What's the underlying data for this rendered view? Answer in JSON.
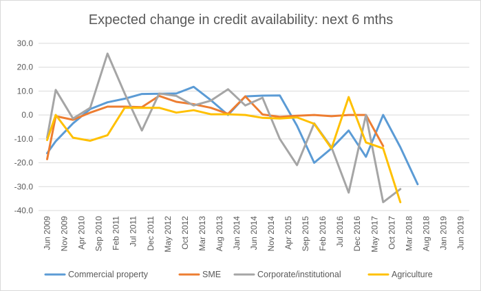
{
  "chart_data": {
    "type": "line",
    "title": "Expected change in credit availability: next 6 mths",
    "xlabel": "",
    "ylabel": "",
    "ylim": [
      -40,
      30
    ],
    "yticks": [
      "30.0",
      "20.0",
      "10.0",
      "0.0",
      "-10.0",
      "-20.0",
      "-30.0",
      "-40.0"
    ],
    "categories": [
      "Jun 2009",
      "Nov 2009",
      "Apr 2010",
      "Sep 2010",
      "Feb 2011",
      "Jul 2011",
      "Dec 2011",
      "May 2012",
      "Oct 2012",
      "Mar 2013",
      "Aug 2013",
      "Jan 2014",
      "Jun 2014",
      "Nov 2014",
      "Apr 2015",
      "Sep 2015",
      "Feb 2016",
      "Jul 2016",
      "Dec 2016",
      "May 2017",
      "Oct 2017",
      "Mar 2018",
      "Aug 2018",
      "Jan 2019",
      "Jun 2019"
    ],
    "legend_position": "bottom",
    "series": [
      {
        "name": "Commercial property",
        "color": "#5b9bd5",
        "x": [
          0,
          0.5,
          1.5,
          2.5,
          3.5,
          4.5,
          5.5,
          6.5,
          7.5,
          8.5,
          9.5,
          10.5,
          11.5,
          12.5,
          13.5,
          14.5,
          15.5,
          16.5,
          17.5,
          18.5,
          19.5,
          20.5,
          21.5,
          22.5,
          23.5
        ],
        "values": [
          -16,
          -11,
          -3.5,
          2.5,
          5.3,
          6.8,
          8.8,
          8.9,
          9,
          11.8,
          6.2,
          0,
          7.8,
          8.1,
          8.2,
          -4.5,
          -20,
          -14,
          -6.5,
          -17.5,
          0,
          -13.5,
          -29,
          null,
          null
        ]
      },
      {
        "name": "SME",
        "color": "#ed7d31",
        "x": [
          0,
          0.5,
          1.5,
          2.5,
          3.5,
          4.5,
          5.5,
          6.5,
          7.5,
          8.5,
          9.5,
          10.5,
          11.5,
          12.5,
          13.5,
          14.5,
          15.5,
          16.5,
          17.5,
          18.5,
          19.5,
          20.5,
          21.5,
          22.5,
          23.5
        ],
        "values": [
          -18.5,
          -0.5,
          -2,
          1,
          3.5,
          3.5,
          3.3,
          8,
          5.5,
          4.5,
          3,
          0.5,
          7.8,
          0.2,
          -0.8,
          -0.3,
          0,
          -0.5,
          0,
          0,
          -13,
          null,
          null,
          null,
          null
        ]
      },
      {
        "name": "Corporate/institutional",
        "color": "#a5a5a5",
        "x": [
          0,
          0.5,
          1.5,
          2.5,
          3.5,
          4.5,
          5.5,
          6.5,
          7.5,
          8.5,
          9.5,
          10.5,
          11.5,
          12.5,
          13.5,
          14.5,
          15.5,
          16.5,
          17.5,
          18.5,
          19.5,
          20.5,
          21.5,
          22.5,
          23.5
        ],
        "values": [
          -9.5,
          10.5,
          -1.5,
          3,
          25.7,
          9,
          -6.5,
          9,
          8,
          4,
          6,
          10.8,
          4,
          7.2,
          -10,
          -21,
          -3.5,
          -13.5,
          -32.5,
          0,
          -36.5,
          -31,
          null,
          null,
          null
        ]
      },
      {
        "name": "Agriculture",
        "color": "#ffc000",
        "x": [
          0,
          0.5,
          1.5,
          2.5,
          3.5,
          4.5,
          5.5,
          6.5,
          7.5,
          8.5,
          9.5,
          10.5,
          11.5,
          12.5,
          13.5,
          14.5,
          15.5,
          16.5,
          17.5,
          18.5,
          19.5,
          20.5,
          21.5,
          22.5,
          23.5
        ],
        "values": [
          -10.5,
          0,
          -9.5,
          -10.8,
          -8.5,
          3,
          3,
          3,
          1,
          2,
          0.3,
          0.3,
          0,
          -1.2,
          -1.5,
          -1,
          -3.7,
          -14,
          7.5,
          -11.5,
          -14,
          -36.5,
          null,
          null,
          null
        ]
      }
    ]
  }
}
